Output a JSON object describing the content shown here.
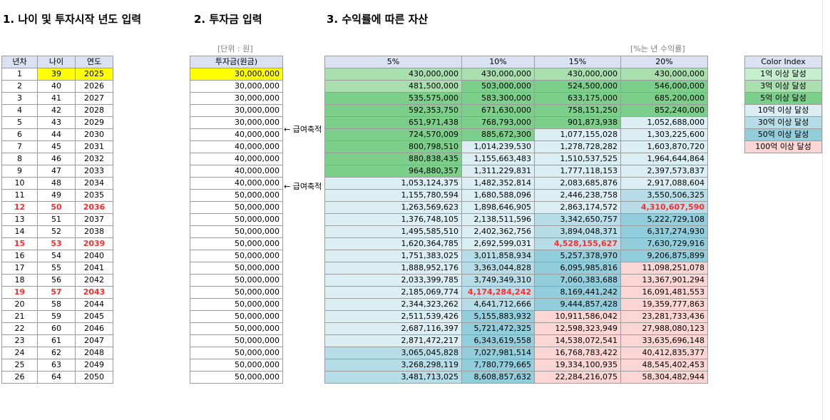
{
  "headers": {
    "section1": "1. 나이 및 투자시작 년도 입력",
    "section2": "2. 투자금 입력",
    "section3": "3. 수익률에 따른 자산"
  },
  "units": {
    "invest": "[단위 : 원]",
    "rate": "[%는 년 수익률]"
  },
  "age_table": {
    "columns": [
      "년차",
      "나이",
      "연도"
    ],
    "rows": [
      [
        "1",
        "39",
        "2025"
      ],
      [
        "2",
        "40",
        "2026"
      ],
      [
        "3",
        "41",
        "2027"
      ],
      [
        "4",
        "42",
        "2028"
      ],
      [
        "5",
        "43",
        "2029"
      ],
      [
        "6",
        "44",
        "2030"
      ],
      [
        "7",
        "45",
        "2031"
      ],
      [
        "8",
        "46",
        "2032"
      ],
      [
        "9",
        "47",
        "2033"
      ],
      [
        "10",
        "48",
        "2034"
      ],
      [
        "11",
        "49",
        "2035"
      ],
      [
        "12",
        "50",
        "2036"
      ],
      [
        "13",
        "51",
        "2037"
      ],
      [
        "14",
        "52",
        "2038"
      ],
      [
        "15",
        "53",
        "2039"
      ],
      [
        "16",
        "54",
        "2040"
      ],
      [
        "17",
        "55",
        "2041"
      ],
      [
        "18",
        "56",
        "2042"
      ],
      [
        "19",
        "57",
        "2043"
      ],
      [
        "20",
        "58",
        "2044"
      ],
      [
        "21",
        "59",
        "2045"
      ],
      [
        "22",
        "60",
        "2046"
      ],
      [
        "23",
        "61",
        "2047"
      ],
      [
        "24",
        "62",
        "2048"
      ],
      [
        "25",
        "63",
        "2049"
      ],
      [
        "26",
        "64",
        "2050"
      ]
    ],
    "highlight_red_rows": [
      11,
      14,
      18
    ]
  },
  "invest_table": {
    "column": "투자금(원금)",
    "values": [
      "30,000,000",
      "30,000,000",
      "30,000,000",
      "30,000,000",
      "30,000,000",
      "40,000,000",
      "40,000,000",
      "40,000,000",
      "40,000,000",
      "40,000,000",
      "50,000,000",
      "50,000,000",
      "50,000,000",
      "50,000,000",
      "50,000,000",
      "50,000,000",
      "50,000,000",
      "50,000,000",
      "50,000,000",
      "50,000,000",
      "50,000,000",
      "50,000,000",
      "50,000,000",
      "50,000,000",
      "50,000,000",
      "50,000,000"
    ],
    "notes": [
      {
        "row": 5,
        "text": "← 급여축적"
      },
      {
        "row": 10,
        "text": "← 급여축적"
      }
    ]
  },
  "asset_table": {
    "columns": [
      "5%",
      "10%",
      "15%",
      "20%"
    ],
    "rows": [
      [
        "430,000,000",
        "430,000,000",
        "430,000,000",
        "430,000,000"
      ],
      [
        "481,500,000",
        "503,000,000",
        "524,500,000",
        "546,000,000"
      ],
      [
        "535,575,000",
        "583,300,000",
        "633,175,000",
        "685,200,000"
      ],
      [
        "592,353,750",
        "671,630,000",
        "758,151,250",
        "852,240,000"
      ],
      [
        "651,971,438",
        "768,793,000",
        "901,873,938",
        "1,052,688,000"
      ],
      [
        "724,570,009",
        "885,672,300",
        "1,077,155,028",
        "1,303,225,600"
      ],
      [
        "800,798,510",
        "1,014,239,530",
        "1,278,728,282",
        "1,603,870,720"
      ],
      [
        "880,838,435",
        "1,155,663,483",
        "1,510,537,525",
        "1,964,644,864"
      ],
      [
        "964,880,357",
        "1,311,229,831",
        "1,777,118,153",
        "2,397,573,837"
      ],
      [
        "1,053,124,375",
        "1,482,352,814",
        "2,083,685,876",
        "2,917,088,604"
      ],
      [
        "1,155,780,594",
        "1,680,588,096",
        "2,446,238,758",
        "3,550,506,325"
      ],
      [
        "1,263,569,623",
        "1,898,646,905",
        "2,863,174,572",
        "4,310,607,590"
      ],
      [
        "1,376,748,105",
        "2,138,511,596",
        "3,342,650,757",
        "5,222,729,108"
      ],
      [
        "1,495,585,510",
        "2,402,362,756",
        "3,894,048,371",
        "6,317,274,930"
      ],
      [
        "1,620,364,785",
        "2,692,599,031",
        "4,528,155,627",
        "7,630,729,916"
      ],
      [
        "1,751,383,025",
        "3,011,858,934",
        "5,257,378,970",
        "9,206,875,899"
      ],
      [
        "1,888,952,176",
        "3,363,044,828",
        "6,095,985,816",
        "11,098,251,078"
      ],
      [
        "2,033,399,785",
        "3,749,349,310",
        "7,060,383,688",
        "13,367,901,294"
      ],
      [
        "2,185,069,774",
        "4,174,284,242",
        "8,169,441,242",
        "16,091,481,553"
      ],
      [
        "2,344,323,262",
        "4,641,712,666",
        "9,444,857,428",
        "19,359,777,863"
      ],
      [
        "2,511,539,426",
        "5,155,883,932",
        "10,911,586,042",
        "23,281,733,436"
      ],
      [
        "2,687,116,397",
        "5,721,472,325",
        "12,598,323,949",
        "27,988,080,123"
      ],
      [
        "2,871,472,217",
        "6,343,619,558",
        "14,538,072,541",
        "33,635,696,148"
      ],
      [
        "3,065,045,828",
        "7,027,981,514",
        "16,768,783,422",
        "40,412,835,377"
      ],
      [
        "3,268,298,119",
        "7,780,779,665",
        "19,334,100,935",
        "48,545,402,453"
      ],
      [
        "3,481,713,025",
        "8,608,857,632",
        "22,284,216,075",
        "58,304,482,944"
      ]
    ],
    "red_bold_cells": [
      [
        11,
        3
      ],
      [
        14,
        2
      ],
      [
        18,
        1
      ]
    ]
  },
  "legend": {
    "title": "Color Index",
    "items": [
      {
        "label": "1억 이상 달성",
        "color": "#c6efce"
      },
      {
        "label": "3억 이상 달성",
        "color": "#a9dfae"
      },
      {
        "label": "5억 이상 달성",
        "color": "#7ccf8a"
      },
      {
        "label": "10억 이상 달성",
        "color": "#daeef3"
      },
      {
        "label": "30억 이상 달성",
        "color": "#b7dee8"
      },
      {
        "label": "50억 이상 달성",
        "color": "#92cddc"
      },
      {
        "label": "100억 이상 달성",
        "color": "#fcd5d5"
      }
    ]
  }
}
